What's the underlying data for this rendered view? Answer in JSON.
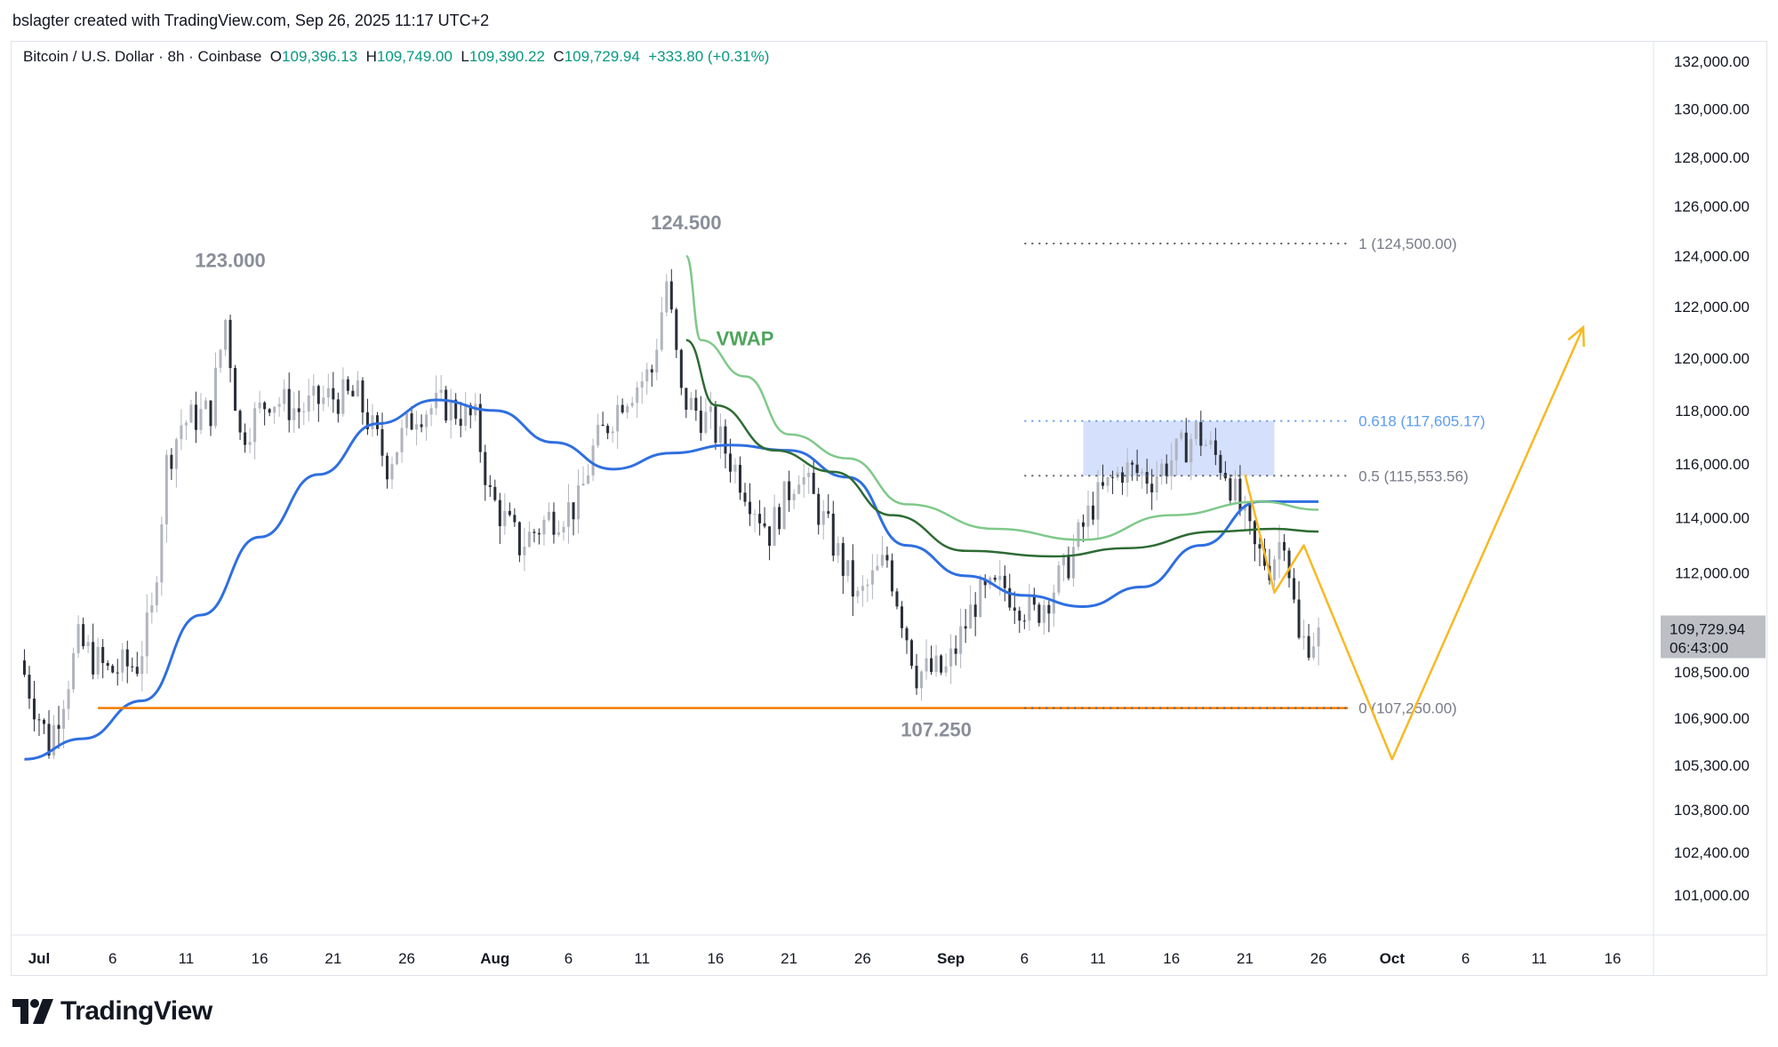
{
  "header": {
    "attribution": "bslagter created with TradingView.com, Sep 26, 2025 11:17 UTC+2"
  },
  "legend": {
    "symbol": "Bitcoin / U.S. Dollar · 8h · Coinbase",
    "o_label": "O",
    "o_value": "109,396.13",
    "h_label": "H",
    "h_value": "109,749.00",
    "l_label": "L",
    "l_value": "109,390.22",
    "c_label": "C",
    "c_value": "109,729.94",
    "change": "+333.80 (+0.31%)"
  },
  "footer": {
    "brand": "TradingView",
    "logo_icon": "tradingview-logo-icon"
  },
  "colors": {
    "up_candle": "#b2b5be",
    "down_candle": "#2a2e39",
    "ma_blue": "#2f6fe0",
    "vwap_light": "#7fc98a",
    "vwap_dark": "#2e6b34",
    "support": "#f57c00",
    "projection": "#f7b924",
    "fib_zone": "#c7d6fb",
    "label_grey": "#8a8e99",
    "fib_618": "#5b9cf2"
  },
  "chart_data": {
    "type": "candlestick",
    "title": "",
    "xlabel": "",
    "ylabel": "",
    "ylim": [
      100000,
      132000
    ],
    "x_range": [
      "2025-07-01",
      "2025-10-19"
    ],
    "price_scale_ticks": [
      "132,000.00",
      "130,000.00",
      "128,000.00",
      "126,000.00",
      "124,000.00",
      "122,000.00",
      "120,000.00",
      "118,000.00",
      "116,000.00",
      "114,000.00",
      "112,000.00",
      "110,000.00",
      "108,500.00",
      "106,900.00",
      "105,300.00",
      "103,800.00",
      "102,400.00",
      "101,000.00"
    ],
    "time_axis_ticks": [
      {
        "label": "Jul",
        "date": "2025-07-01",
        "bold": true
      },
      {
        "label": "6",
        "date": "2025-07-06"
      },
      {
        "label": "11",
        "date": "2025-07-11"
      },
      {
        "label": "16",
        "date": "2025-07-16"
      },
      {
        "label": "21",
        "date": "2025-07-21"
      },
      {
        "label": "26",
        "date": "2025-07-26"
      },
      {
        "label": "Aug",
        "date": "2025-08-01",
        "bold": true
      },
      {
        "label": "6",
        "date": "2025-08-06"
      },
      {
        "label": "11",
        "date": "2025-08-11"
      },
      {
        "label": "16",
        "date": "2025-08-16"
      },
      {
        "label": "21",
        "date": "2025-08-21"
      },
      {
        "label": "26",
        "date": "2025-08-26"
      },
      {
        "label": "Sep",
        "date": "2025-09-01",
        "bold": true
      },
      {
        "label": "6",
        "date": "2025-09-06"
      },
      {
        "label": "11",
        "date": "2025-09-11"
      },
      {
        "label": "16",
        "date": "2025-09-16"
      },
      {
        "label": "21",
        "date": "2025-09-21"
      },
      {
        "label": "26",
        "date": "2025-09-26"
      },
      {
        "label": "Oct",
        "date": "2025-10-01",
        "bold": true
      },
      {
        "label": "6",
        "date": "2025-10-06"
      },
      {
        "label": "11",
        "date": "2025-10-11"
      },
      {
        "label": "16",
        "date": "2025-10-16"
      }
    ],
    "price_anchors": [
      {
        "date": "2025-06-30",
        "price": 108900
      },
      {
        "date": "2025-07-02",
        "price": 106000
      },
      {
        "date": "2025-07-04",
        "price": 109500
      },
      {
        "date": "2025-07-06",
        "price": 108500
      },
      {
        "date": "2025-07-08",
        "price": 108800
      },
      {
        "date": "2025-07-09",
        "price": 110500
      },
      {
        "date": "2025-07-10",
        "price": 116000
      },
      {
        "date": "2025-07-11",
        "price": 117500
      },
      {
        "date": "2025-07-13",
        "price": 118000
      },
      {
        "date": "2025-07-14",
        "price": 121500
      },
      {
        "date": "2025-07-15",
        "price": 117000
      },
      {
        "date": "2025-07-17",
        "price": 118500
      },
      {
        "date": "2025-07-19",
        "price": 118000
      },
      {
        "date": "2025-07-21",
        "price": 118500
      },
      {
        "date": "2025-07-23",
        "price": 118500
      },
      {
        "date": "2025-07-25",
        "price": 116000
      },
      {
        "date": "2025-07-27",
        "price": 118000
      },
      {
        "date": "2025-07-29",
        "price": 118200
      },
      {
        "date": "2025-07-31",
        "price": 117600
      },
      {
        "date": "2025-08-01",
        "price": 114800
      },
      {
        "date": "2025-08-03",
        "price": 113000
      },
      {
        "date": "2025-08-05",
        "price": 114000
      },
      {
        "date": "2025-08-07",
        "price": 114500
      },
      {
        "date": "2025-08-08",
        "price": 116500
      },
      {
        "date": "2025-08-10",
        "price": 118500
      },
      {
        "date": "2025-08-12",
        "price": 119500
      },
      {
        "date": "2025-08-13",
        "price": 123000
      },
      {
        "date": "2025-08-14",
        "price": 118500
      },
      {
        "date": "2025-08-16",
        "price": 117500
      },
      {
        "date": "2025-08-18",
        "price": 115500
      },
      {
        "date": "2025-08-20",
        "price": 113500
      },
      {
        "date": "2025-08-22",
        "price": 115800
      },
      {
        "date": "2025-08-24",
        "price": 113500
      },
      {
        "date": "2025-08-26",
        "price": 111000
      },
      {
        "date": "2025-08-28",
        "price": 112500
      },
      {
        "date": "2025-08-30",
        "price": 108500
      },
      {
        "date": "2025-09-01",
        "price": 108500
      },
      {
        "date": "2025-09-03",
        "price": 111000
      },
      {
        "date": "2025-09-05",
        "price": 111500
      },
      {
        "date": "2025-09-07",
        "price": 110500
      },
      {
        "date": "2025-09-09",
        "price": 112000
      },
      {
        "date": "2025-09-11",
        "price": 114500
      },
      {
        "date": "2025-09-13",
        "price": 115800
      },
      {
        "date": "2025-09-15",
        "price": 115500
      },
      {
        "date": "2025-09-17",
        "price": 116500
      },
      {
        "date": "2025-09-18",
        "price": 117200
      },
      {
        "date": "2025-09-20",
        "price": 115800
      },
      {
        "date": "2025-09-22",
        "price": 112800
      },
      {
        "date": "2025-09-23",
        "price": 112300
      },
      {
        "date": "2025-09-24",
        "price": 113500
      },
      {
        "date": "2025-09-25",
        "price": 109500
      },
      {
        "date": "2025-09-26",
        "price": 109730
      }
    ],
    "series": [
      {
        "kind": "moving-average",
        "color": "#2f6fe0",
        "points": [
          {
            "date": "2025-06-30",
            "price": 105500
          },
          {
            "date": "2025-07-04",
            "price": 106200
          },
          {
            "date": "2025-07-08",
            "price": 107500
          },
          {
            "date": "2025-07-12",
            "price": 110500
          },
          {
            "date": "2025-07-16",
            "price": 113300
          },
          {
            "date": "2025-07-20",
            "price": 115600
          },
          {
            "date": "2025-07-24",
            "price": 117500
          },
          {
            "date": "2025-07-28",
            "price": 118400
          },
          {
            "date": "2025-08-01",
            "price": 118000
          },
          {
            "date": "2025-08-05",
            "price": 116800
          },
          {
            "date": "2025-08-09",
            "price": 115800
          },
          {
            "date": "2025-08-13",
            "price": 116400
          },
          {
            "date": "2025-08-17",
            "price": 116700
          },
          {
            "date": "2025-08-21",
            "price": 116500
          },
          {
            "date": "2025-08-25",
            "price": 115500
          },
          {
            "date": "2025-08-29",
            "price": 113000
          },
          {
            "date": "2025-09-02",
            "price": 111900
          },
          {
            "date": "2025-09-06",
            "price": 111200
          },
          {
            "date": "2025-09-10",
            "price": 110800
          },
          {
            "date": "2025-09-14",
            "price": 111500
          },
          {
            "date": "2025-09-18",
            "price": 113000
          },
          {
            "date": "2025-09-22",
            "price": 114600
          },
          {
            "date": "2025-09-26",
            "price": 114600
          }
        ]
      },
      {
        "kind": "anchored-vwap",
        "color": "#7fc98a",
        "points": [
          {
            "date": "2025-08-14",
            "price": 124000
          },
          {
            "date": "2025-08-15",
            "price": 120700
          },
          {
            "date": "2025-08-18",
            "price": 119300
          },
          {
            "date": "2025-08-21",
            "price": 117100
          },
          {
            "date": "2025-08-25",
            "price": 116200
          },
          {
            "date": "2025-08-29",
            "price": 114500
          },
          {
            "date": "2025-09-04",
            "price": 113600
          },
          {
            "date": "2025-09-10",
            "price": 113200
          },
          {
            "date": "2025-09-16",
            "price": 114100
          },
          {
            "date": "2025-09-22",
            "price": 114600
          },
          {
            "date": "2025-09-26",
            "price": 114300
          }
        ]
      },
      {
        "kind": "anchored-vwap",
        "color": "#2e6b34",
        "points": [
          {
            "date": "2025-08-14",
            "price": 120700
          },
          {
            "date": "2025-08-16",
            "price": 118200
          },
          {
            "date": "2025-08-20",
            "price": 116500
          },
          {
            "date": "2025-08-24",
            "price": 115700
          },
          {
            "date": "2025-08-28",
            "price": 114100
          },
          {
            "date": "2025-09-02",
            "price": 112800
          },
          {
            "date": "2025-09-08",
            "price": 112600
          },
          {
            "date": "2025-09-13",
            "price": 112900
          },
          {
            "date": "2025-09-19",
            "price": 113500
          },
          {
            "date": "2025-09-23",
            "price": 113600
          },
          {
            "date": "2025-09-26",
            "price": 113500
          }
        ]
      }
    ],
    "annotations": [
      {
        "text": "123.000",
        "date": "2025-07-14",
        "price": 123000,
        "kind": "high-label"
      },
      {
        "text": "124.500",
        "date": "2025-08-14",
        "price": 124500,
        "kind": "high-label"
      },
      {
        "text": "107.250",
        "date": "2025-08-31",
        "price": 107250,
        "kind": "low-label"
      },
      {
        "text": "VWAP",
        "date": "2025-08-18",
        "price": 120500,
        "kind": "indicator-label"
      }
    ],
    "support_line": {
      "price": 107250,
      "from": "2025-07-05",
      "to": "2025-09-28"
    },
    "fibonacci": {
      "from": "2025-09-06",
      "to": "2025-09-28",
      "levels": [
        {
          "ratio": "1",
          "price": 124500,
          "label": "1 (124,500.00)"
        },
        {
          "ratio": "0.618",
          "price": 117605.17,
          "label": "0.618 (117,605.17)"
        },
        {
          "ratio": "0.5",
          "price": 115553.56,
          "label": "0.5 (115,553.56)"
        },
        {
          "ratio": "0",
          "price": 107250,
          "label": "0 (107,250.00)"
        }
      ]
    },
    "highlight_zone": {
      "from": "2025-09-10",
      "to": "2025-09-23",
      "price_low": 115553.56,
      "price_high": 117605.17
    },
    "projection_path": [
      {
        "date": "2025-09-21",
        "price": 115600
      },
      {
        "date": "2025-09-23",
        "price": 111300
      },
      {
        "date": "2025-09-25",
        "price": 113000
      },
      {
        "date": "2025-10-01",
        "price": 105500
      },
      {
        "date": "2025-10-14",
        "price": 121200
      }
    ],
    "last_price_label": {
      "price": "109,729.94",
      "countdown": "06:43:00",
      "value": 109729.94
    }
  }
}
